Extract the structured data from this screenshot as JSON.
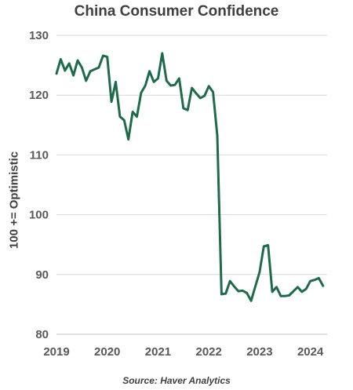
{
  "chart_data": {
    "type": "line",
    "title": "China Consumer Confidence",
    "ylabel": "100 += Optimistic",
    "source": "Source: Haver Analytics",
    "ylim": [
      80,
      130
    ],
    "xlim": [
      2019,
      2024.33
    ],
    "yticks": [
      80,
      90,
      100,
      110,
      120,
      130
    ],
    "xticks": [
      "2019",
      "2020",
      "2021",
      "2022",
      "2023",
      "2024"
    ],
    "grid": true,
    "line_color": "#1e6b4a",
    "series": [
      {
        "x": [
          2019.0,
          2019.083,
          2019.167,
          2019.25,
          2019.333,
          2019.417,
          2019.5,
          2019.583,
          2019.667,
          2019.75,
          2019.833,
          2019.917,
          2020.0,
          2020.083,
          2020.167,
          2020.25,
          2020.333,
          2020.417,
          2020.5,
          2020.583,
          2020.667,
          2020.75,
          2020.833,
          2020.917,
          2021.0,
          2021.083,
          2021.167,
          2021.25,
          2021.333,
          2021.417,
          2021.5,
          2021.583,
          2021.667,
          2021.75,
          2021.833,
          2021.917,
          2022.0,
          2022.083,
          2022.167,
          2022.25,
          2022.333,
          2022.417,
          2022.5,
          2022.583,
          2022.667,
          2022.75,
          2022.833,
          2022.917,
          2023.0,
          2023.083,
          2023.167,
          2023.25,
          2023.333,
          2023.417,
          2023.5,
          2023.583,
          2023.667,
          2023.75,
          2023.833,
          2023.917,
          2024.0,
          2024.083,
          2024.167,
          2024.25
        ],
        "values": [
          123.6,
          126.0,
          124.1,
          125.3,
          123.3,
          125.8,
          124.6,
          122.4,
          124.0,
          124.3,
          124.6,
          126.6,
          126.4,
          118.9,
          122.2,
          116.4,
          115.8,
          112.6,
          117.2,
          116.4,
          120.4,
          121.6,
          124.0,
          122.2,
          122.8,
          127.0,
          122.4,
          121.6,
          121.7,
          122.8,
          117.8,
          117.5,
          121.2,
          120.3,
          119.5,
          119.9,
          121.5,
          120.5,
          113.2,
          86.7,
          86.8,
          88.9,
          88.0,
          87.2,
          87.3,
          86.9,
          85.6,
          88.0,
          90.4,
          94.7,
          94.9,
          87.1,
          87.9,
          86.4,
          86.4,
          86.5,
          87.2,
          87.9,
          87.1,
          87.6,
          88.9,
          89.1,
          89.4,
          88.1
        ]
      }
    ]
  }
}
